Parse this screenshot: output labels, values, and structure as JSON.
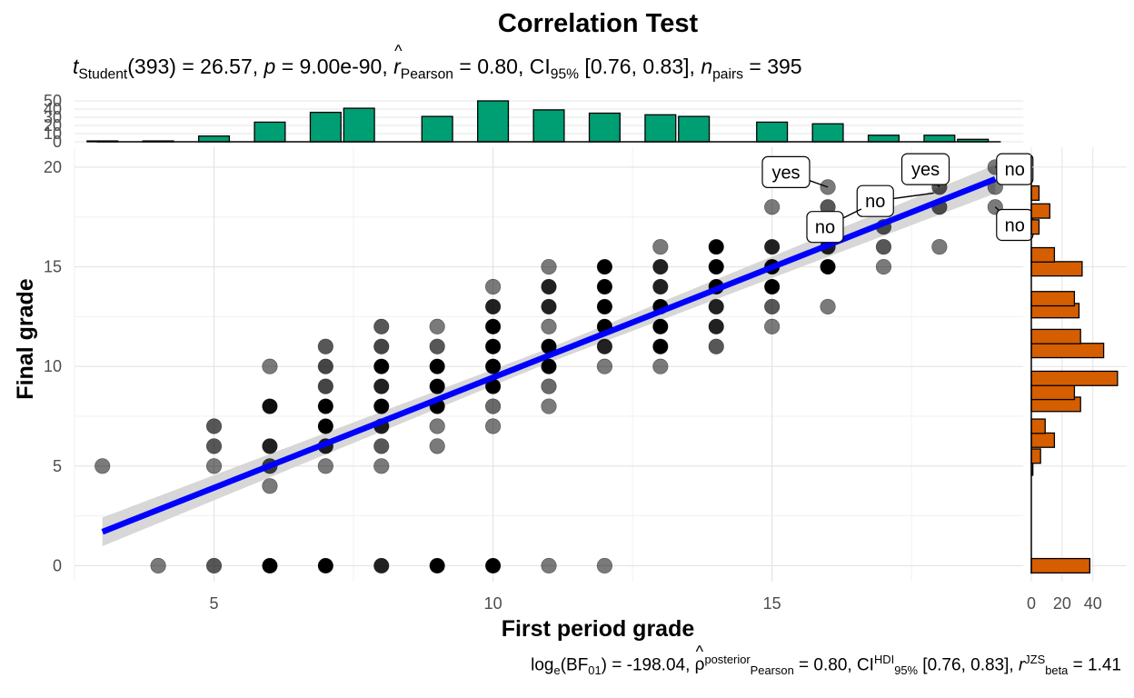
{
  "chart_data": {
    "type": "scatter",
    "title": "Correlation Test",
    "subtitle": {
      "t_label": "t",
      "t_sub": "Student",
      "df": "(393)",
      "t_val": " = 26.57, ",
      "p_label": "p",
      "p_val": " = 9.00e-90, ",
      "r_label": "r",
      "r_sub": "Pearson",
      "r_val": " = 0.80, CI",
      "ci_sub": "95%",
      "ci_val": " [0.76, 0.83], ",
      "n_label": "n",
      "n_sub": "pairs",
      "n_val": " = 395"
    },
    "caption": {
      "bf_pre": "log",
      "bf_e": "e",
      "bf_mid": "(BF",
      "bf_01": "01",
      "bf_val": ") = -198.04, ",
      "rho": "ρ",
      "rho_sup": "posterior",
      "rho_sub": "Pearson",
      "rho_val": " = 0.80, CI",
      "ci_sup": "HDI",
      "ci_sub": "95%",
      "ci_val": " [0.76, 0.83], ",
      "r": "r",
      "r_sup": "JZS",
      "r_sub": "beta",
      "r_val": " = 1.41"
    },
    "xlabel": "First period grade",
    "ylabel": "Final grade",
    "xlim": [
      2.5,
      19.5
    ],
    "ylim": [
      -0.8,
      21
    ],
    "xticks": [
      5,
      10,
      15
    ],
    "yticks": [
      0,
      5,
      10,
      15,
      20
    ],
    "grid": true,
    "regression": {
      "x0": 3,
      "y0": 1.7,
      "x1": 19,
      "y1": 19.4,
      "ci_halfwidth": 0.45,
      "color": "#0000FF",
      "band_color": "#D3D3D3"
    },
    "points": [
      {
        "x": 3,
        "y": 5,
        "n": 1
      },
      {
        "x": 4,
        "y": 0,
        "n": 1
      },
      {
        "x": 5,
        "y": 0,
        "n": 3
      },
      {
        "x": 5,
        "y": 5,
        "n": 1
      },
      {
        "x": 5,
        "y": 6,
        "n": 3
      },
      {
        "x": 5,
        "y": 7,
        "n": 3
      },
      {
        "x": 6,
        "y": 0,
        "n": 8
      },
      {
        "x": 6,
        "y": 4,
        "n": 1
      },
      {
        "x": 6,
        "y": 5,
        "n": 4
      },
      {
        "x": 6,
        "y": 6,
        "n": 6
      },
      {
        "x": 6,
        "y": 8,
        "n": 7
      },
      {
        "x": 6,
        "y": 10,
        "n": 1
      },
      {
        "x": 7,
        "y": 0,
        "n": 8
      },
      {
        "x": 7,
        "y": 5,
        "n": 1
      },
      {
        "x": 7,
        "y": 6,
        "n": 6
      },
      {
        "x": 7,
        "y": 7,
        "n": 8
      },
      {
        "x": 7,
        "y": 8,
        "n": 8
      },
      {
        "x": 7,
        "y": 9,
        "n": 4
      },
      {
        "x": 7,
        "y": 10,
        "n": 4
      },
      {
        "x": 7,
        "y": 11,
        "n": 3
      },
      {
        "x": 8,
        "y": 0,
        "n": 6
      },
      {
        "x": 8,
        "y": 5,
        "n": 1
      },
      {
        "x": 8,
        "y": 6,
        "n": 3
      },
      {
        "x": 8,
        "y": 7,
        "n": 6
      },
      {
        "x": 8,
        "y": 8,
        "n": 8
      },
      {
        "x": 8,
        "y": 9,
        "n": 6
      },
      {
        "x": 8,
        "y": 10,
        "n": 8
      },
      {
        "x": 8,
        "y": 11,
        "n": 4
      },
      {
        "x": 8,
        "y": 12,
        "n": 3
      },
      {
        "x": 9,
        "y": 0,
        "n": 8
      },
      {
        "x": 9,
        "y": 6,
        "n": 1
      },
      {
        "x": 9,
        "y": 7,
        "n": 1
      },
      {
        "x": 9,
        "y": 8,
        "n": 8
      },
      {
        "x": 9,
        "y": 9,
        "n": 8
      },
      {
        "x": 9,
        "y": 10,
        "n": 8
      },
      {
        "x": 9,
        "y": 11,
        "n": 3
      },
      {
        "x": 9,
        "y": 12,
        "n": 1
      },
      {
        "x": 10,
        "y": 0,
        "n": 8
      },
      {
        "x": 10,
        "y": 7,
        "n": 1
      },
      {
        "x": 10,
        "y": 8,
        "n": 2
      },
      {
        "x": 10,
        "y": 9,
        "n": 8
      },
      {
        "x": 10,
        "y": 10,
        "n": 8
      },
      {
        "x": 10,
        "y": 11,
        "n": 8
      },
      {
        "x": 10,
        "y": 12,
        "n": 8
      },
      {
        "x": 10,
        "y": 13,
        "n": 6
      },
      {
        "x": 10,
        "y": 14,
        "n": 1
      },
      {
        "x": 11,
        "y": 0,
        "n": 1
      },
      {
        "x": 11,
        "y": 8,
        "n": 1
      },
      {
        "x": 11,
        "y": 9,
        "n": 2
      },
      {
        "x": 11,
        "y": 10,
        "n": 8
      },
      {
        "x": 11,
        "y": 11,
        "n": 8
      },
      {
        "x": 11,
        "y": 12,
        "n": 1
      },
      {
        "x": 11,
        "y": 13,
        "n": 6
      },
      {
        "x": 11,
        "y": 14,
        "n": 6
      },
      {
        "x": 11,
        "y": 15,
        "n": 1
      },
      {
        "x": 12,
        "y": 0,
        "n": 1
      },
      {
        "x": 12,
        "y": 10,
        "n": 1
      },
      {
        "x": 12,
        "y": 11,
        "n": 6
      },
      {
        "x": 12,
        "y": 12,
        "n": 8
      },
      {
        "x": 12,
        "y": 13,
        "n": 8
      },
      {
        "x": 12,
        "y": 14,
        "n": 8
      },
      {
        "x": 12,
        "y": 15,
        "n": 8
      },
      {
        "x": 13,
        "y": 10,
        "n": 1
      },
      {
        "x": 13,
        "y": 11,
        "n": 8
      },
      {
        "x": 13,
        "y": 12,
        "n": 8
      },
      {
        "x": 13,
        "y": 13,
        "n": 8
      },
      {
        "x": 13,
        "y": 14,
        "n": 6
      },
      {
        "x": 13,
        "y": 15,
        "n": 6
      },
      {
        "x": 13,
        "y": 16,
        "n": 1
      },
      {
        "x": 14,
        "y": 11,
        "n": 3
      },
      {
        "x": 14,
        "y": 12,
        "n": 6
      },
      {
        "x": 14,
        "y": 13,
        "n": 6
      },
      {
        "x": 14,
        "y": 14,
        "n": 8
      },
      {
        "x": 14,
        "y": 15,
        "n": 8
      },
      {
        "x": 14,
        "y": 16,
        "n": 8
      },
      {
        "x": 15,
        "y": 12,
        "n": 1
      },
      {
        "x": 15,
        "y": 13,
        "n": 3
      },
      {
        "x": 15,
        "y": 14,
        "n": 8
      },
      {
        "x": 15,
        "y": 15,
        "n": 8
      },
      {
        "x": 15,
        "y": 16,
        "n": 6
      },
      {
        "x": 15,
        "y": 18,
        "n": 1
      },
      {
        "x": 16,
        "y": 13,
        "n": 1
      },
      {
        "x": 16,
        "y": 15,
        "n": 8
      },
      {
        "x": 16,
        "y": 16,
        "n": 6
      },
      {
        "x": 16,
        "y": 17,
        "n": 3
      },
      {
        "x": 16,
        "y": 18,
        "n": 3
      },
      {
        "x": 16,
        "y": 19,
        "n": 1
      },
      {
        "x": 17,
        "y": 15,
        "n": 1
      },
      {
        "x": 17,
        "y": 16,
        "n": 3
      },
      {
        "x": 17,
        "y": 17,
        "n": 3
      },
      {
        "x": 17,
        "y": 18,
        "n": 1
      },
      {
        "x": 18,
        "y": 16,
        "n": 1
      },
      {
        "x": 18,
        "y": 18,
        "n": 3
      },
      {
        "x": 18,
        "y": 19,
        "n": 3
      },
      {
        "x": 19,
        "y": 18,
        "n": 1
      },
      {
        "x": 19,
        "y": 19,
        "n": 1
      },
      {
        "x": 19,
        "y": 20,
        "n": 1
      }
    ],
    "point_labels": [
      {
        "text": "yes",
        "x": 16,
        "y": 19,
        "lx": 15.25,
        "ly": 19.75
      },
      {
        "text": "no",
        "x": 17.9,
        "y": 18.7,
        "lx": 16.85,
        "ly": 18.3
      },
      {
        "text": "no",
        "x": 16.6,
        "y": 17.9,
        "lx": 15.95,
        "ly": 17.0
      },
      {
        "text": "yes",
        "x": 18,
        "y": 19,
        "lx": 17.75,
        "ly": 19.9
      },
      {
        "text": "no",
        "x": 19,
        "y": 20,
        "lx": 19.35,
        "ly": 19.9
      },
      {
        "text": "no",
        "x": 19,
        "y": 18,
        "lx": 19.35,
        "ly": 17.1
      }
    ],
    "top_histogram": {
      "color": "#009E73",
      "bin_width": 0.55,
      "bins": [
        {
          "x": 3,
          "count": 1
        },
        {
          "x": 4,
          "count": 1
        },
        {
          "x": 5,
          "count": 7
        },
        {
          "x": 6,
          "count": 24
        },
        {
          "x": 7,
          "count": 36
        },
        {
          "x": 7.6,
          "count": 41
        },
        {
          "x": 9,
          "count": 31
        },
        {
          "x": 10,
          "count": 50
        },
        {
          "x": 11,
          "count": 39
        },
        {
          "x": 12,
          "count": 35
        },
        {
          "x": 13,
          "count": 33
        },
        {
          "x": 13.6,
          "count": 31
        },
        {
          "x": 15,
          "count": 24
        },
        {
          "x": 16,
          "count": 22
        },
        {
          "x": 17,
          "count": 8
        },
        {
          "x": 18,
          "count": 8
        },
        {
          "x": 18.6,
          "count": 3
        }
      ],
      "yticks": [
        0,
        10,
        20,
        30,
        40,
        50
      ]
    },
    "right_histogram": {
      "color": "#D55E00",
      "bin_height": 0.72,
      "bins": [
        {
          "y": 0,
          "count": 38
        },
        {
          "y": 4.9,
          "count": 1
        },
        {
          "y": 5.5,
          "count": 6
        },
        {
          "y": 6.3,
          "count": 15
        },
        {
          "y": 7,
          "count": 9
        },
        {
          "y": 8.1,
          "count": 32
        },
        {
          "y": 8.7,
          "count": 28
        },
        {
          "y": 9.4,
          "count": 56
        },
        {
          "y": 10.8,
          "count": 47
        },
        {
          "y": 11.5,
          "count": 32
        },
        {
          "y": 12.8,
          "count": 31
        },
        {
          "y": 13.4,
          "count": 28
        },
        {
          "y": 14.9,
          "count": 33
        },
        {
          "y": 15.6,
          "count": 15
        },
        {
          "y": 17.0,
          "count": 5
        },
        {
          "y": 17.8,
          "count": 12
        },
        {
          "y": 18.7,
          "count": 5
        }
      ],
      "xticks": [
        0,
        20,
        40
      ]
    }
  }
}
